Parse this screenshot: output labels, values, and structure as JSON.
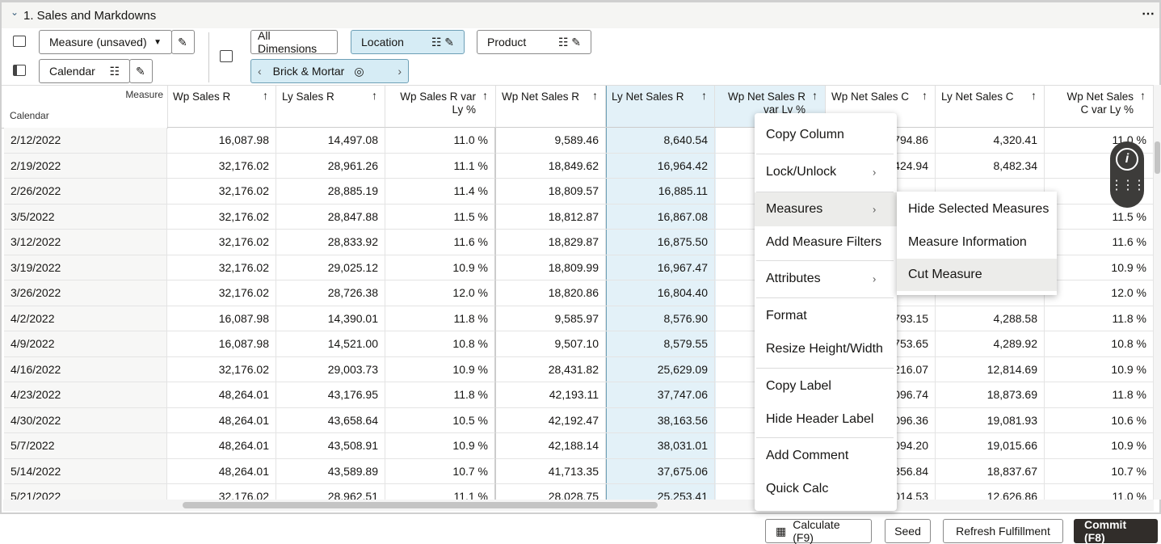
{
  "header": {
    "title": "1. Sales and Markdowns"
  },
  "toolbar": {
    "measure_select": "Measure (unsaved)",
    "calendar": "Calendar",
    "dimensions": [
      "All Dimensions",
      "Location",
      "Product"
    ],
    "breadcrumb": "Brick & Mortar"
  },
  "table": {
    "corner": [
      "Measure",
      "Calendar"
    ],
    "columns": [
      "Wp Sales R",
      "Ly Sales R",
      "Wp Sales R var Ly %",
      "Wp Net Sales R",
      "Ly Net Sales R",
      "Wp Net Sales R var Ly %",
      "Wp Net Sales C",
      "Ly Net Sales C",
      "Wp Net Sales C var Ly %"
    ],
    "rows": [
      [
        "2/12/2022",
        "16,087.98",
        "14,497.08",
        "11.0 %",
        "9,589.46",
        "8,640.54",
        null,
        "794.86",
        "4,320.41",
        "11.0 %"
      ],
      [
        "2/19/2022",
        "32,176.02",
        "28,961.26",
        "11.1 %",
        "18,849.62",
        "16,964.42",
        null,
        "424.94",
        "8,482.34",
        null
      ],
      [
        "2/26/2022",
        "32,176.02",
        "28,885.19",
        "11.4 %",
        "18,809.57",
        "16,885.11",
        null,
        null,
        null,
        null
      ],
      [
        "3/5/2022",
        "32,176.02",
        "28,847.88",
        "11.5 %",
        "18,812.87",
        "16,867.08",
        null,
        null,
        null,
        "11.5 %"
      ],
      [
        "3/12/2022",
        "32,176.02",
        "28,833.92",
        "11.6 %",
        "18,829.87",
        "16,875.50",
        null,
        null,
        null,
        "11.6 %"
      ],
      [
        "3/19/2022",
        "32,176.02",
        "29,025.12",
        "10.9 %",
        "18,809.99",
        "16,967.47",
        null,
        null,
        null,
        "10.9 %"
      ],
      [
        "3/26/2022",
        "32,176.02",
        "28,726.38",
        "12.0 %",
        "18,820.86",
        "16,804.40",
        null,
        null,
        null,
        "12.0 %"
      ],
      [
        "4/2/2022",
        "16,087.98",
        "14,390.01",
        "11.8 %",
        "9,585.97",
        "8,576.90",
        null,
        "793.15",
        "4,288.58",
        "11.8 %"
      ],
      [
        "4/9/2022",
        "16,087.98",
        "14,521.00",
        "10.8 %",
        "9,507.10",
        "8,579.55",
        null,
        "753.65",
        "4,289.92",
        "10.8 %"
      ],
      [
        "4/16/2022",
        "32,176.02",
        "29,003.73",
        "10.9 %",
        "28,431.82",
        "25,629.09",
        null,
        "216.07",
        "12,814.69",
        "10.9 %"
      ],
      [
        "4/23/2022",
        "48,264.01",
        "43,176.95",
        "11.8 %",
        "42,193.11",
        "37,747.06",
        null,
        "096.74",
        "18,873.69",
        "11.8 %"
      ],
      [
        "4/30/2022",
        "48,264.01",
        "43,658.64",
        "10.5 %",
        "42,192.47",
        "38,163.56",
        null,
        "096.36",
        "19,081.93",
        "10.6 %"
      ],
      [
        "5/7/2022",
        "48,264.01",
        "43,508.91",
        "10.9 %",
        "42,188.14",
        "38,031.01",
        null,
        "094.20",
        "19,015.66",
        "10.9 %"
      ],
      [
        "5/14/2022",
        "48,264.01",
        "43,589.89",
        "10.7 %",
        "41,713.35",
        "37,675.06",
        null,
        "856.84",
        "18,837.67",
        "10.7 %"
      ],
      [
        "5/21/2022",
        "32,176.02",
        "28,962.51",
        "11.1 %",
        "28,028.75",
        "25,253.41",
        null,
        "014.53",
        "12,626.86",
        "11.0 %"
      ]
    ]
  },
  "context_menu": {
    "items": [
      "Copy Column",
      "Lock/Unlock",
      "Measures",
      "Add Measure Filters",
      "Attributes",
      "Format",
      "Resize Height/Width",
      "Copy Label",
      "Hide Header Label",
      "Add Comment",
      "Quick Calc"
    ],
    "submenu": [
      "Hide Selected Measures",
      "Measure Information",
      "Cut Measure"
    ]
  },
  "footer": {
    "buttons": [
      "Calculate (F9)",
      "Seed",
      "Refresh Fulfillment",
      "Commit (F8)"
    ]
  }
}
